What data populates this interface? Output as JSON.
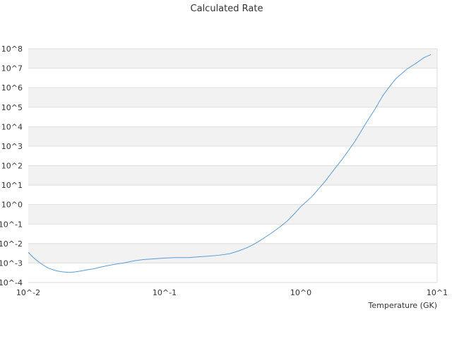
{
  "chart_data": {
    "type": "line",
    "title": "Calculated Rate",
    "xlabel": "Temperature (GK)",
    "ylabel": "",
    "x_scale": "log",
    "y_scale": "log",
    "xlim": [
      0.01,
      10
    ],
    "ylim": [
      0.0001,
      100000000
    ],
    "x_tick_values": [
      0.01,
      0.1,
      1,
      10
    ],
    "x_tick_labels": [
      "10^-2",
      "10^-1",
      "10^0",
      "10^1"
    ],
    "y_tick_values": [
      0.0001,
      0.001,
      0.01,
      0.1,
      1,
      10,
      100,
      1000,
      10000,
      100000,
      1000000,
      10000000,
      100000000
    ],
    "y_tick_labels": [
      "10^-4",
      "10^-3",
      "10^-2",
      "10^-1",
      "10^0",
      "10^1",
      "10^2",
      "10^3",
      "10^4",
      "10^5",
      "10^6",
      "10^7",
      "10^8"
    ],
    "grid": "horizontal alternating bands",
    "legend": "none",
    "colors": {
      "line": "#5b9bd5",
      "band": "#f2f2f2",
      "gridline": "#dddddd",
      "text": "#333333"
    },
    "series": [
      {
        "x": [
          0.01,
          0.011,
          0.012,
          0.013,
          0.014,
          0.016,
          0.018,
          0.02,
          0.022,
          0.025,
          0.028,
          0.03,
          0.035,
          0.04,
          0.045,
          0.05,
          0.06,
          0.07,
          0.08,
          0.09,
          0.1,
          0.12,
          0.15,
          0.18,
          0.2,
          0.25,
          0.3,
          0.35,
          0.4,
          0.45,
          0.5,
          0.6,
          0.7,
          0.8,
          0.9,
          1.0,
          1.2,
          1.5,
          1.8,
          2.0,
          2.5,
          3.0,
          3.5,
          4.0,
          4.5,
          5.0,
          6.0,
          7.0,
          8.0,
          9.0
        ],
        "y": [
          0.0035,
          0.0018,
          0.0011,
          0.00075,
          0.00055,
          0.0004,
          0.00035,
          0.00033,
          0.00035,
          0.0004,
          0.00047,
          0.0005,
          0.00065,
          0.00078,
          0.0009,
          0.001,
          0.0013,
          0.0015,
          0.0016,
          0.0017,
          0.0018,
          0.0019,
          0.0019,
          0.0021,
          0.0022,
          0.0025,
          0.003,
          0.0042,
          0.006,
          0.009,
          0.014,
          0.032,
          0.07,
          0.15,
          0.35,
          0.8,
          2.5,
          15,
          80,
          200,
          1800,
          15000,
          80000,
          400000,
          1200000,
          3000000,
          9000000,
          18000000,
          35000000,
          50000000
        ]
      }
    ]
  }
}
